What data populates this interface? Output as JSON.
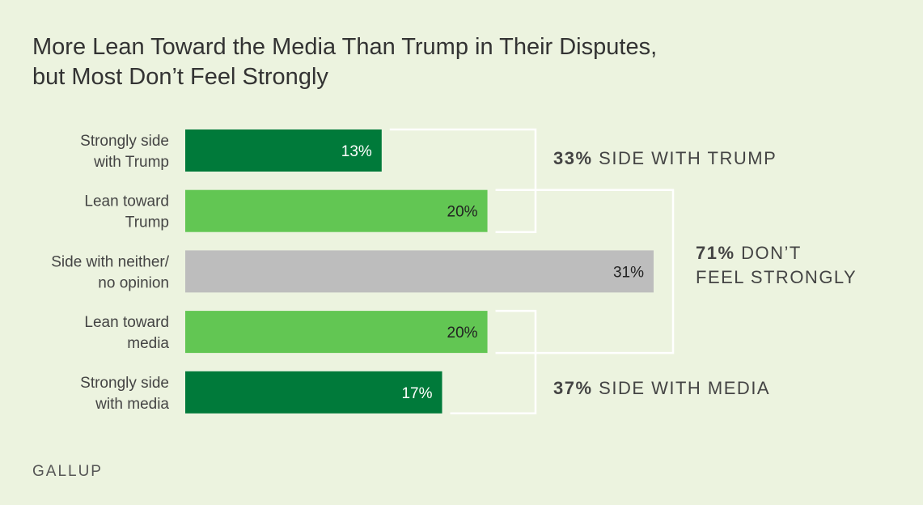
{
  "title": {
    "line1": "More Lean Toward the Media Than Trump in Their Disputes,",
    "line2": "but Most Don’t Feel Strongly"
  },
  "source": "GALLUP",
  "colors": {
    "background": "#ecf3df",
    "dark_green": "#007a3a",
    "light_green": "#62c653",
    "gray": "#bdbdbd",
    "bracket": "#ffffff",
    "text": "#333333",
    "label_text": "#444444",
    "annotation_text": "#444444"
  },
  "chart_data": {
    "type": "bar",
    "orientation": "horizontal",
    "categories": [
      [
        "Strongly side",
        "with Trump"
      ],
      [
        "Lean toward",
        "Trump"
      ],
      [
        "Side with neither/",
        "no opinion"
      ],
      [
        "Lean toward",
        "media"
      ],
      [
        "Strongly side",
        "with media"
      ]
    ],
    "values": [
      13,
      20,
      31,
      20,
      17
    ],
    "value_labels": [
      "13%",
      "20%",
      "31%",
      "20%",
      "17%"
    ],
    "bar_colors": [
      "dark_green",
      "light_green",
      "gray",
      "light_green",
      "dark_green"
    ],
    "xlim": [
      0,
      31
    ],
    "annotations": [
      {
        "bold": "33%",
        "text": " SIDE WITH TRUMP",
        "covers": [
          0,
          1
        ]
      },
      {
        "bold": "71%",
        "text": " DON’T",
        "text2": "FEEL STRONGLY",
        "covers": [
          1,
          3
        ]
      },
      {
        "bold": "37%",
        "text": " SIDE WITH MEDIA",
        "covers": [
          3,
          4
        ]
      }
    ]
  }
}
